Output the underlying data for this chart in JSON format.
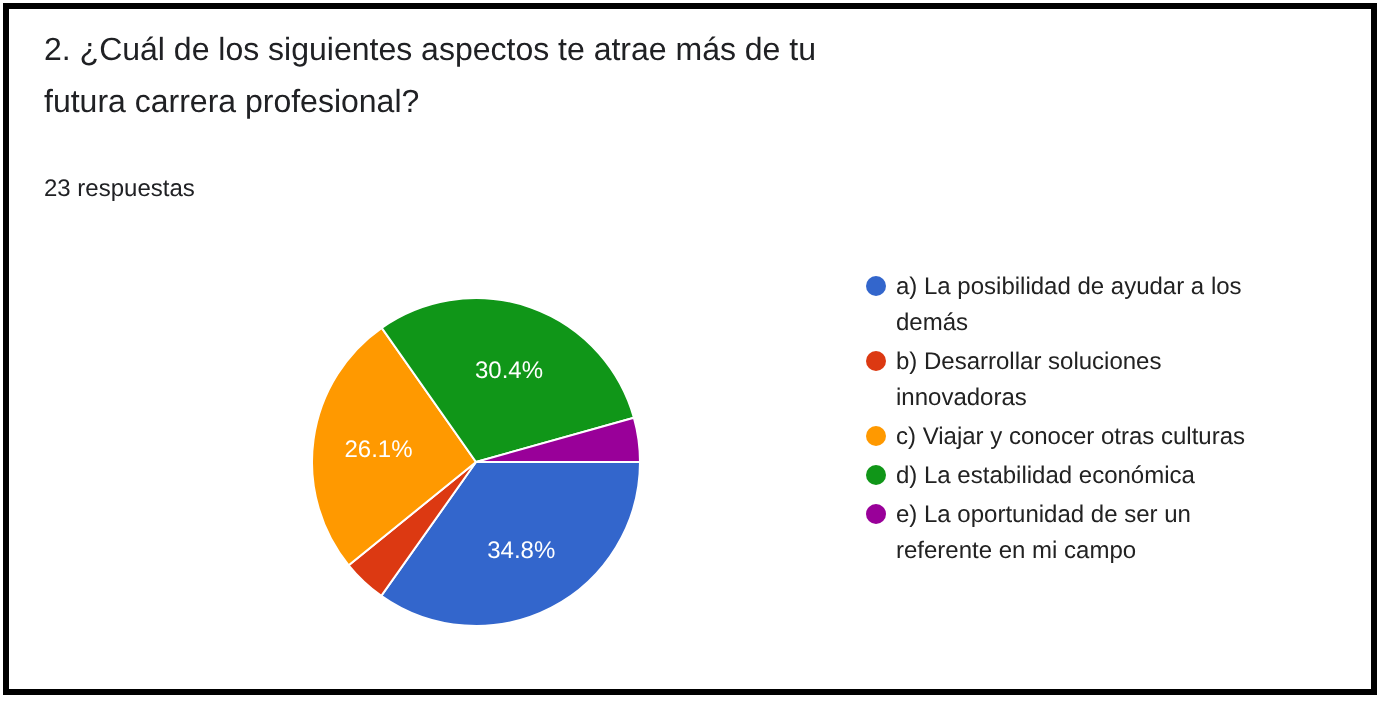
{
  "chart_data": {
    "type": "pie",
    "title": "2. ¿Cuál de los siguientes aspectos te atrae más de tu futura carrera profesional?",
    "subtitle": "23 respuestas",
    "categories": [
      "a) La posibilidad de ayudar a los demás",
      "b) Desarrollar soluciones innovadoras",
      "c) Viajar y conocer otras culturas",
      "d) La estabilidad económica",
      "e) La oportunidad de ser un referente en mi campo"
    ],
    "values": [
      34.8,
      4.35,
      26.1,
      30.4,
      4.35
    ],
    "value_labels": [
      "34.8%",
      null,
      "26.1%",
      "30.4%",
      null
    ],
    "colors": [
      "#3366cc",
      "#dc3912",
      "#ff9900",
      "#109618",
      "#990099"
    ],
    "legend": "right"
  }
}
